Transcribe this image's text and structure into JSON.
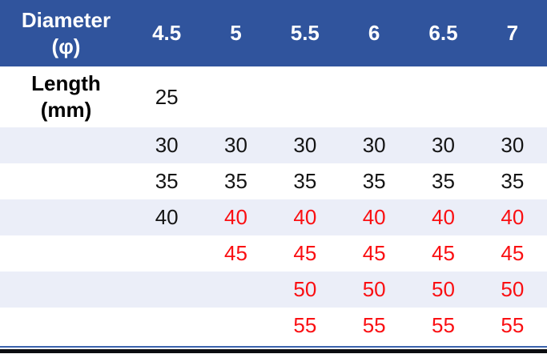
{
  "colors": {
    "header_bg": "#30549D",
    "header_text": "#FFFFFF",
    "stripe_bg": "#EBEEF8",
    "row_bg": "#FFFFFF",
    "text": "#141414",
    "highlight": "#FA0F12",
    "border_blue": "#3B63AD",
    "border_black": "#0B0D10"
  },
  "table": {
    "header": {
      "label_line1": "Diameter",
      "label_line2": "(φ)",
      "columns": [
        "4.5",
        "5",
        "5.5",
        "6",
        "6.5",
        "7"
      ]
    },
    "row_label": {
      "line1": "Length",
      "line2": "(mm)"
    },
    "rows": [
      {
        "values": [
          "25",
          "",
          "",
          "",
          "",
          ""
        ]
      },
      {
        "values": [
          "30",
          "30",
          "30",
          "30",
          "30",
          "30"
        ]
      },
      {
        "values": [
          "35",
          "35",
          "35",
          "35",
          "35",
          "35"
        ]
      },
      {
        "values": [
          "40",
          "40",
          "40",
          "40",
          "40",
          "40"
        ]
      },
      {
        "values": [
          "",
          "45",
          "45",
          "45",
          "45",
          "45"
        ]
      },
      {
        "values": [
          "",
          "",
          "50",
          "50",
          "50",
          "50"
        ]
      },
      {
        "values": [
          "",
          "",
          "55",
          "55",
          "55",
          "55"
        ]
      }
    ]
  }
}
